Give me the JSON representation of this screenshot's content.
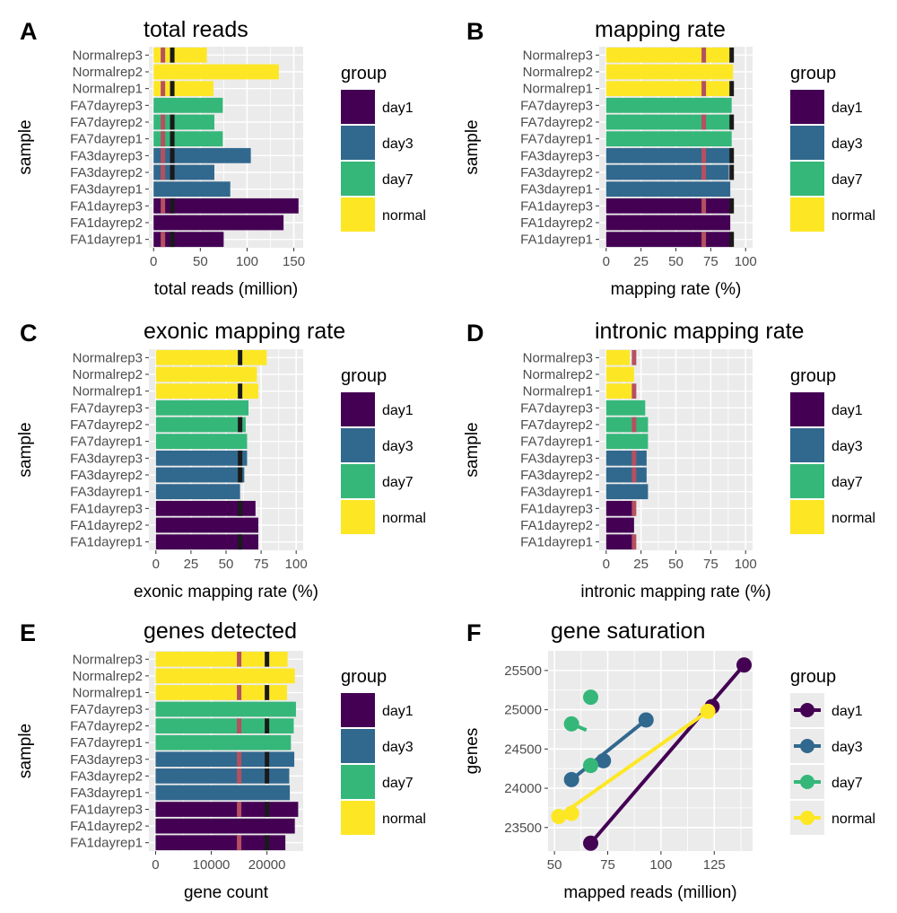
{
  "figure": {
    "colors": {
      "day1": "#440154",
      "day3": "#31688e",
      "day7": "#35b779",
      "normal": "#fde725",
      "panel_bg": "#ebebeb",
      "grid": "#ffffff",
      "marker_black": "#1a1a1a",
      "marker_red": "#b55060"
    }
  },
  "chart_data": [
    {
      "type": "bar",
      "panel_id": "A",
      "panel_label": "A",
      "title": "total reads",
      "xlabel": "total reads (million)",
      "ylabel": "sample",
      "orientation": "horizontal",
      "xlim": [
        -5,
        160
      ],
      "xticks": [
        0,
        50,
        100,
        150
      ],
      "xtick_labels": [
        "0",
        "50",
        "100",
        "150"
      ],
      "categories": [
        "FA1dayrep1",
        "FA1dayrep2",
        "FA1dayrep3",
        "FA3dayrep1",
        "FA3dayrep2",
        "FA3dayrep3",
        "FA7dayrep1",
        "FA7dayrep2",
        "FA7dayrep3",
        "Normalrep1",
        "Normalrep2",
        "Normalrep3"
      ],
      "groups": [
        "day1",
        "day1",
        "day1",
        "day3",
        "day3",
        "day3",
        "day7",
        "day7",
        "day7",
        "normal",
        "normal",
        "normal"
      ],
      "values": [
        75,
        139,
        155,
        82,
        65,
        104,
        74,
        65,
        74,
        64,
        134,
        57
      ],
      "marker_black": 20,
      "marker_red": 10,
      "marker_rows": [
        0,
        2,
        4,
        5,
        6,
        7,
        9,
        11
      ],
      "legend": {
        "title": "group",
        "entries": [
          "day1",
          "day3",
          "day7",
          "normal"
        ]
      }
    },
    {
      "type": "bar",
      "panel_id": "B",
      "panel_label": "B",
      "title": "mapping rate",
      "xlabel": "mapping rate (%)",
      "ylabel": "sample",
      "orientation": "horizontal",
      "xlim": [
        -5,
        105
      ],
      "xticks": [
        0,
        25,
        50,
        75,
        100
      ],
      "xtick_labels": [
        "0",
        "25",
        "50",
        "75",
        "100"
      ],
      "categories": [
        "FA1dayrep1",
        "FA1dayrep2",
        "FA1dayrep3",
        "FA3dayrep1",
        "FA3dayrep2",
        "FA3dayrep3",
        "FA7dayrep1",
        "FA7dayrep2",
        "FA7dayrep3",
        "Normalrep1",
        "Normalrep2",
        "Normalrep3"
      ],
      "groups": [
        "day1",
        "day1",
        "day1",
        "day3",
        "day3",
        "day3",
        "day7",
        "day7",
        "day7",
        "normal",
        "normal",
        "normal"
      ],
      "values": [
        89,
        89,
        90,
        89,
        88,
        89,
        90,
        90,
        90,
        90,
        91,
        90
      ],
      "marker_black": 90,
      "marker_red": 70,
      "marker_rows": [
        0,
        2,
        4,
        5,
        7,
        9,
        11
      ],
      "legend": {
        "title": "group",
        "entries": [
          "day1",
          "day3",
          "day7",
          "normal"
        ]
      }
    },
    {
      "type": "bar",
      "panel_id": "C",
      "panel_label": "C",
      "title": "exonic mapping rate",
      "xlabel": "exonic mapping rate (%)",
      "ylabel": "sample",
      "orientation": "horizontal",
      "xlim": [
        -5,
        105
      ],
      "xticks": [
        0,
        25,
        50,
        75,
        100
      ],
      "xtick_labels": [
        "0",
        "25",
        "50",
        "75",
        "100"
      ],
      "categories": [
        "FA1dayrep1",
        "FA1dayrep2",
        "FA1dayrep3",
        "FA3dayrep1",
        "FA3dayrep2",
        "FA3dayrep3",
        "FA7dayrep1",
        "FA7dayrep2",
        "FA7dayrep3",
        "Normalrep1",
        "Normalrep2",
        "Normalrep3"
      ],
      "groups": [
        "day1",
        "day1",
        "day1",
        "day3",
        "day3",
        "day3",
        "day7",
        "day7",
        "day7",
        "normal",
        "normal",
        "normal"
      ],
      "values": [
        73,
        73,
        71,
        60,
        63,
        65,
        65,
        64,
        66,
        73,
        72,
        79
      ],
      "marker_black": 60,
      "marker_red": null,
      "marker_rows": [
        0,
        2,
        4,
        5,
        7,
        9,
        11
      ],
      "legend": {
        "title": "group",
        "entries": [
          "day1",
          "day3",
          "day7",
          "normal"
        ]
      }
    },
    {
      "type": "bar",
      "panel_id": "D",
      "panel_label": "D",
      "title": "intronic mapping rate",
      "xlabel": "intronic mapping rate (%)",
      "ylabel": "sample",
      "orientation": "horizontal",
      "xlim": [
        -5,
        105
      ],
      "xticks": [
        0,
        25,
        50,
        75,
        100
      ],
      "xtick_labels": [
        "0",
        "25",
        "50",
        "75",
        "100"
      ],
      "categories": [
        "FA1dayrep1",
        "FA1dayrep2",
        "FA1dayrep3",
        "FA3dayrep1",
        "FA3dayrep2",
        "FA3dayrep3",
        "FA7dayrep1",
        "FA7dayrep2",
        "FA7dayrep3",
        "Normalrep1",
        "Normalrep2",
        "Normalrep3"
      ],
      "groups": [
        "day1",
        "day1",
        "day1",
        "day3",
        "day3",
        "day3",
        "day7",
        "day7",
        "day7",
        "normal",
        "normal",
        "normal"
      ],
      "values": [
        20,
        20,
        20,
        30,
        29,
        29,
        30,
        30,
        28,
        19,
        20,
        17
      ],
      "marker_black": null,
      "marker_red": 20,
      "marker_rows": [
        0,
        2,
        4,
        5,
        7,
        9,
        11
      ],
      "legend": {
        "title": "group",
        "entries": [
          "day1",
          "day3",
          "day7",
          "normal"
        ]
      }
    },
    {
      "type": "bar",
      "panel_id": "E",
      "panel_label": "E",
      "title": "genes detected",
      "xlabel": "gene count",
      "ylabel": "sample",
      "orientation": "horizontal",
      "xlim": [
        -1200,
        26500
      ],
      "xticks": [
        0,
        10000,
        20000
      ],
      "xtick_labels": [
        "0",
        "10000",
        "20000"
      ],
      "categories": [
        "FA1dayrep1",
        "FA1dayrep2",
        "FA1dayrep3",
        "FA3dayrep1",
        "FA3dayrep2",
        "FA3dayrep3",
        "FA7dayrep1",
        "FA7dayrep2",
        "FA7dayrep3",
        "Normalrep1",
        "Normalrep2",
        "Normalrep3"
      ],
      "groups": [
        "day1",
        "day1",
        "day1",
        "day3",
        "day3",
        "day3",
        "day7",
        "day7",
        "day7",
        "normal",
        "normal",
        "normal"
      ],
      "values": [
        23300,
        25000,
        25600,
        24100,
        24000,
        24900,
        24300,
        24800,
        25200,
        23600,
        25000,
        23700
      ],
      "marker_black": 20000,
      "marker_red": 15000,
      "marker_rows": [
        0,
        2,
        4,
        5,
        7,
        9,
        11
      ],
      "legend": {
        "title": "group",
        "entries": [
          "day1",
          "day3",
          "day7",
          "normal"
        ]
      }
    },
    {
      "type": "line",
      "panel_id": "F",
      "panel_label": "F",
      "title": "gene saturation",
      "xlabel": "mapped reads (million)",
      "ylabel": "genes",
      "xlim": [
        47,
        143
      ],
      "ylim": [
        23200,
        25750
      ],
      "xticks": [
        50,
        75,
        100,
        125
      ],
      "xtick_labels": [
        "50",
        "75",
        "100",
        "125"
      ],
      "yticks": [
        23500,
        24000,
        24500,
        25000,
        25500
      ],
      "ytick_labels": [
        "23500",
        "24000",
        "24500",
        "25000",
        "25500"
      ],
      "series": [
        {
          "name": "day1",
          "points": [
            [
              67,
              23300
            ],
            [
              124,
              25040
            ],
            [
              139,
              25570
            ]
          ],
          "fit": [
            [
              67,
              23300
            ],
            [
              139,
              25570
            ]
          ]
        },
        {
          "name": "day3",
          "points": [
            [
              58,
              24110
            ],
            [
              73,
              24350
            ],
            [
              93,
              24870
            ]
          ],
          "fit": [
            [
              58,
              24110
            ],
            [
              93,
              24870
            ]
          ]
        },
        {
          "name": "day7",
          "points": [
            [
              58,
              24820
            ],
            [
              67,
              24290
            ],
            [
              67,
              25160
            ]
          ],
          "fit": [
            [
              58,
              24820
            ],
            [
              65,
              24740
            ]
          ]
        },
        {
          "name": "normal",
          "points": [
            [
              52,
              23640
            ],
            [
              58,
              23680
            ],
            [
              122,
              24980
            ]
          ],
          "fit": [
            [
              52,
              23640
            ],
            [
              122,
              24980
            ]
          ]
        }
      ],
      "legend": {
        "title": "group",
        "entries": [
          "day1",
          "day3",
          "day7",
          "normal"
        ]
      }
    }
  ]
}
